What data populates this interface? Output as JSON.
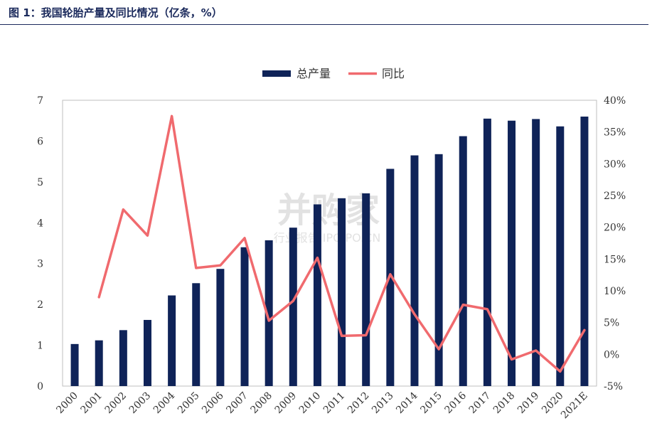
{
  "header": {
    "title": "图 1：我国轮胎产量及同比情况（亿条，%）"
  },
  "watermark": {
    "main": "并购家",
    "sub": "行业报告 IPOIPO.CN"
  },
  "chart_data": {
    "type": "bar",
    "categories": [
      "2000",
      "2001",
      "2002",
      "2003",
      "2004",
      "2005",
      "2006",
      "2007",
      "2008",
      "2009",
      "2010",
      "2011",
      "2012",
      "2013",
      "2014",
      "2015",
      "2016",
      "2017",
      "2018",
      "2019",
      "2020",
      "2021E"
    ],
    "series": [
      {
        "name": "总产量",
        "type": "bar",
        "axis": "left",
        "color": "#0f2358",
        "values": [
          1.03,
          1.12,
          1.37,
          1.62,
          2.22,
          2.52,
          2.87,
          3.4,
          3.57,
          3.88,
          4.45,
          4.6,
          4.72,
          5.32,
          5.65,
          5.68,
          6.12,
          6.55,
          6.5,
          6.54,
          6.36,
          6.6
        ]
      },
      {
        "name": "同比",
        "type": "line",
        "axis": "right",
        "color": "#f06a6e",
        "values": [
          null,
          9.0,
          22.8,
          18.7,
          37.5,
          13.6,
          14.0,
          18.3,
          5.3,
          8.4,
          15.2,
          2.9,
          3.0,
          12.6,
          6.3,
          0.8,
          7.8,
          7.1,
          -0.8,
          0.6,
          -2.7,
          3.8
        ]
      }
    ],
    "yleft": {
      "lim": [
        0,
        7
      ],
      "ticks": [
        "0",
        "1",
        "2",
        "3",
        "4",
        "5",
        "6",
        "7"
      ]
    },
    "yright": {
      "lim": [
        -5,
        40
      ],
      "ticks": [
        "-5%",
        "0%",
        "5%",
        "10%",
        "15%",
        "20%",
        "25%",
        "30%",
        "35%",
        "40%"
      ]
    },
    "legend": "top-center",
    "grid": false
  }
}
